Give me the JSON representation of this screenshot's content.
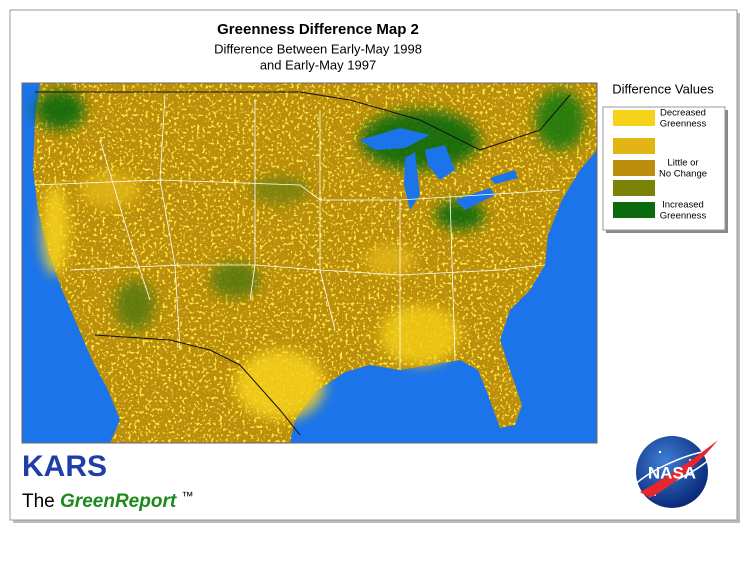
{
  "header": {
    "title": "Greenness Difference Map 2",
    "subtitle": [
      "Difference Between Early-May 1998",
      "and Early-May 1997"
    ]
  },
  "legend": {
    "title": "Difference Values",
    "items": [
      {
        "color": "#f7d21a",
        "label": [
          "Decreased",
          "Greenness"
        ]
      },
      {
        "color": "#e2b514"
      },
      {
        "color": "#bb8e0c",
        "label": [
          "Little or",
          "No Change"
        ]
      },
      {
        "color": "#7b8208"
      },
      {
        "color": "#0b6a0b",
        "label": [
          "Increased",
          "Greenness"
        ]
      }
    ]
  },
  "footer": {
    "brand": "KARS",
    "tagline": {
      "prefix": "The",
      "name": "GreenReport",
      "mark": "™"
    },
    "logo": "NASA"
  }
}
